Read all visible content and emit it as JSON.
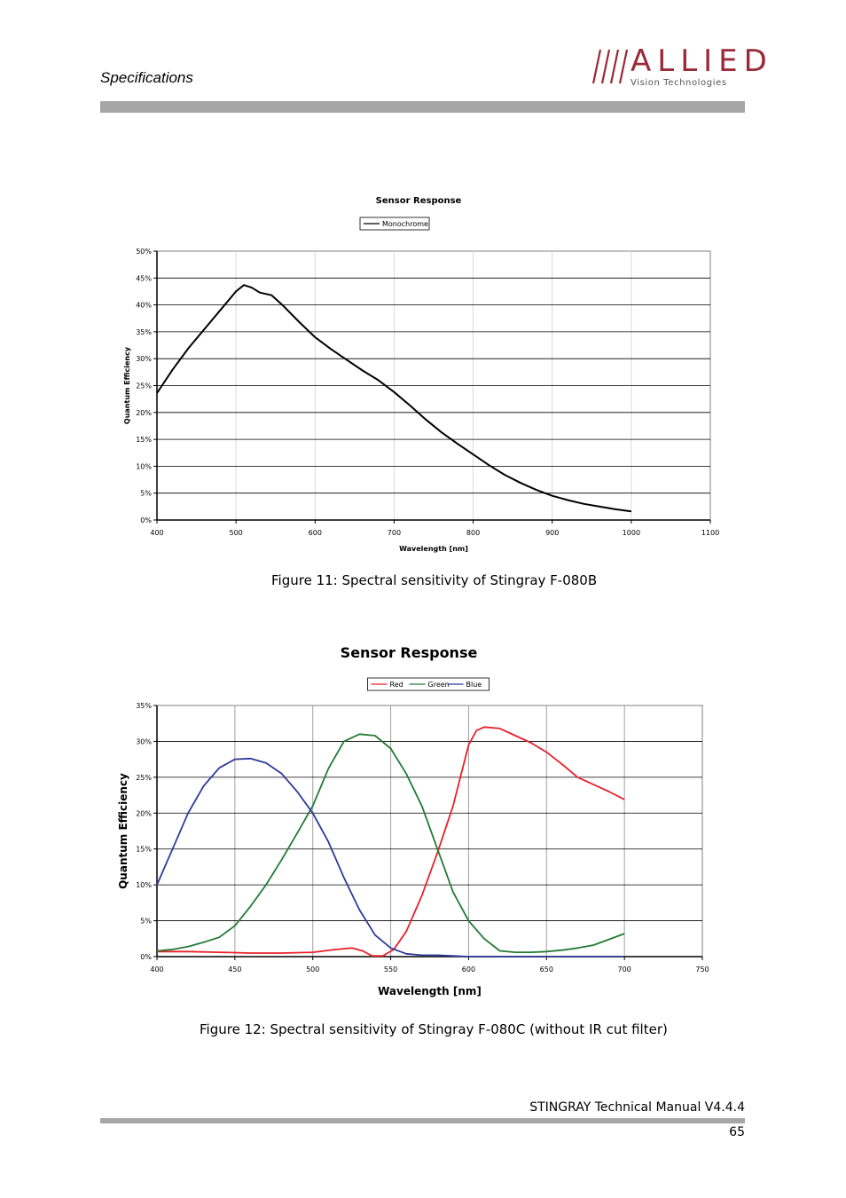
{
  "header": {
    "section_title": "Specifications",
    "logo": {
      "name": "ALLIED",
      "subtitle": "Vision Technologies",
      "color": "#9a2a38"
    }
  },
  "figures": [
    {
      "caption": "Figure 11: Spectral sensitivity of Stingray F-080B"
    },
    {
      "caption": "Figure 12: Spectral sensitivity of Stingray F-080C (without IR cut filter)"
    }
  ],
  "chart_data": [
    {
      "type": "line",
      "title": "Sensor Response",
      "xlabel": "Wavelength [nm]",
      "ylabel": "Quantum Efficiency",
      "xlim": [
        400,
        1100
      ],
      "ylim": [
        0,
        0.5
      ],
      "x_ticks": [
        "400",
        "500",
        "600",
        "700",
        "800",
        "900",
        "1000",
        "1100"
      ],
      "y_ticks": [
        "0%",
        "5%",
        "10%",
        "15%",
        "20%",
        "25%",
        "30%",
        "35%",
        "40%",
        "45%",
        "50%"
      ],
      "legend": "top-center",
      "grid": true,
      "series": [
        {
          "name": "Monochrome",
          "color": "#000000",
          "x": [
            400,
            420,
            440,
            460,
            480,
            500,
            510,
            520,
            530,
            545,
            560,
            580,
            600,
            620,
            640,
            660,
            680,
            700,
            720,
            740,
            760,
            780,
            800,
            820,
            840,
            860,
            880,
            900,
            920,
            940,
            960,
            980,
            1000
          ],
          "y": [
            0.236,
            0.28,
            0.32,
            0.355,
            0.39,
            0.425,
            0.437,
            0.432,
            0.423,
            0.418,
            0.398,
            0.368,
            0.34,
            0.318,
            0.298,
            0.278,
            0.26,
            0.238,
            0.213,
            0.187,
            0.163,
            0.142,
            0.122,
            0.102,
            0.084,
            0.069,
            0.056,
            0.045,
            0.037,
            0.03,
            0.025,
            0.02,
            0.016
          ]
        }
      ]
    },
    {
      "type": "line",
      "title": "Sensor Response",
      "xlabel": "Wavelength [nm]",
      "ylabel": "Quantum Efficiency",
      "xlim": [
        400,
        750
      ],
      "ylim": [
        0,
        0.35
      ],
      "x_ticks": [
        "400",
        "450",
        "500",
        "550",
        "600",
        "650",
        "700",
        "750"
      ],
      "y_ticks": [
        "0%",
        "5%",
        "10%",
        "15%",
        "20%",
        "25%",
        "30%",
        "35%"
      ],
      "legend": "top-center",
      "grid": true,
      "series": [
        {
          "name": "Red",
          "color": "#e8202a",
          "x": [
            400,
            420,
            440,
            460,
            480,
            500,
            515,
            525,
            532,
            538,
            545,
            552,
            560,
            570,
            580,
            590,
            600,
            605,
            610,
            620,
            630,
            640,
            650,
            660,
            670,
            680,
            690,
            700
          ],
          "y": [
            0.007,
            0.007,
            0.006,
            0.005,
            0.005,
            0.006,
            0.01,
            0.012,
            0.008,
            0.001,
            0.001,
            0.01,
            0.035,
            0.085,
            0.145,
            0.21,
            0.295,
            0.315,
            0.32,
            0.318,
            0.308,
            0.298,
            0.285,
            0.268,
            0.25,
            0.24,
            0.23,
            0.219
          ]
        },
        {
          "name": "Green",
          "color": "#237a35",
          "x": [
            400,
            410,
            420,
            430,
            440,
            450,
            460,
            470,
            480,
            490,
            500,
            510,
            520,
            530,
            540,
            550,
            560,
            570,
            580,
            590,
            600,
            610,
            620,
            630,
            640,
            650,
            660,
            670,
            680,
            690,
            700
          ],
          "y": [
            0.008,
            0.01,
            0.014,
            0.02,
            0.027,
            0.043,
            0.07,
            0.1,
            0.135,
            0.172,
            0.21,
            0.262,
            0.3,
            0.31,
            0.308,
            0.29,
            0.255,
            0.21,
            0.15,
            0.09,
            0.05,
            0.025,
            0.008,
            0.006,
            0.006,
            0.007,
            0.009,
            0.012,
            0.016,
            0.024,
            0.032
          ]
        },
        {
          "name": "Blue",
          "color": "#2e3a98",
          "x": [
            400,
            410,
            420,
            430,
            440,
            450,
            460,
            470,
            480,
            490,
            500,
            510,
            520,
            530,
            540,
            550,
            560,
            570,
            580,
            590,
            600,
            620,
            650,
            700
          ],
          "y": [
            0.1,
            0.15,
            0.2,
            0.238,
            0.263,
            0.275,
            0.276,
            0.27,
            0.255,
            0.23,
            0.2,
            0.16,
            0.11,
            0.065,
            0.03,
            0.012,
            0.004,
            0.002,
            0.002,
            0.001,
            0.0,
            0.0,
            0.0,
            0.0
          ]
        }
      ]
    }
  ],
  "footer": {
    "manual_title": "STINGRAY Technical Manual V4.4.4",
    "page_number": "65"
  }
}
